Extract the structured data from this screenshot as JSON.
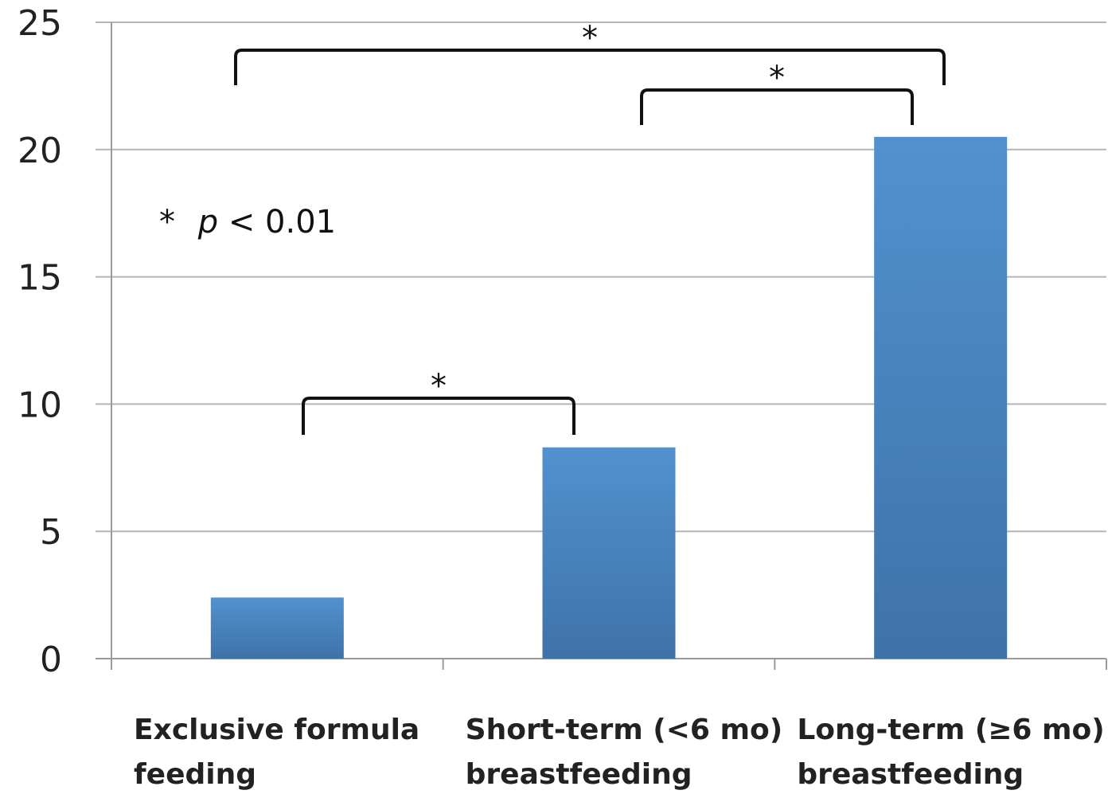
{
  "chart_data": {
    "type": "bar",
    "categories": [
      [
        "Exclusive formula",
        "feeding"
      ],
      [
        "Short-term (<6 mo)",
        "breastfeeding"
      ],
      [
        "Long-term (≥6 mo)",
        "breastfeeding"
      ]
    ],
    "values": [
      2.4,
      8.3,
      20.5
    ],
    "ylim": [
      0,
      25
    ],
    "yticks": [
      0,
      5,
      10,
      15,
      20,
      25
    ],
    "grid": true,
    "bar_color": "#4f88c6",
    "significance": [
      {
        "from": 0,
        "to": 2,
        "label": "*"
      },
      {
        "from": 1,
        "to": 2,
        "label": "*"
      },
      {
        "from": 0,
        "to": 1,
        "label": "*"
      }
    ],
    "annotation": {
      "star": "*",
      "p": "p",
      "rest": " < 0.01"
    }
  }
}
